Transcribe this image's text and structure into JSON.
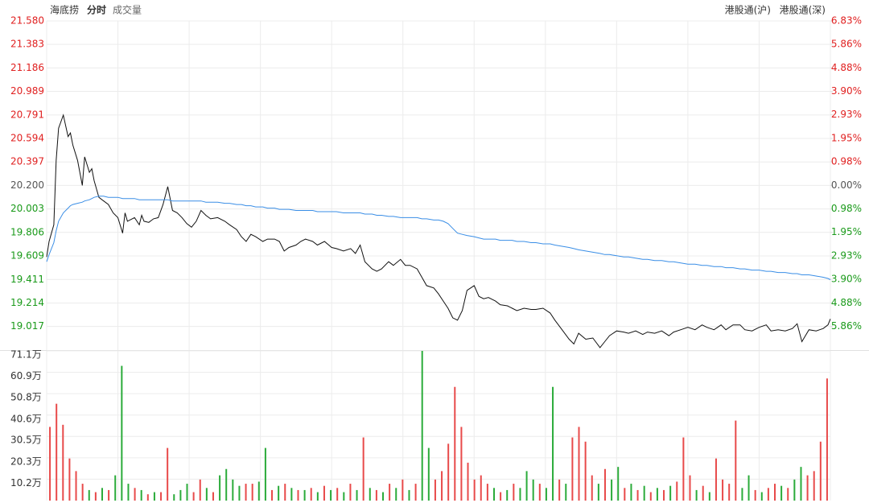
{
  "header": {
    "name": "海底捞",
    "tabs": [
      "分时",
      "成交量"
    ],
    "links": [
      "港股通(沪)",
      "港股通(深)"
    ]
  },
  "chart_data": [
    {
      "type": "line",
      "x": [
        0,
        1,
        3,
        4,
        5,
        7,
        9,
        10,
        11,
        13,
        15,
        16,
        18,
        19,
        20,
        22,
        24,
        26,
        28,
        30,
        32,
        33,
        34,
        37,
        39,
        40,
        41,
        43,
        45,
        47,
        49,
        51,
        53,
        55,
        57,
        59,
        61,
        63,
        65,
        67,
        69,
        72,
        75,
        77,
        80,
        82,
        84,
        86,
        88,
        91,
        93,
        96,
        98,
        100,
        102,
        105,
        107,
        109,
        112,
        114,
        117,
        120,
        122,
        125,
        128,
        130,
        132,
        134,
        137,
        139,
        141,
        144,
        146,
        149,
        151,
        153,
        156,
        158,
        160,
        163,
        165,
        167,
        169,
        171,
        173,
        175,
        177,
        180,
        182,
        184,
        186,
        189,
        191,
        194,
        196,
        198,
        201,
        204,
        206,
        209,
        212,
        214,
        217,
        220,
        222,
        224,
        227,
        230,
        233,
        235,
        237,
        240,
        243,
        245,
        248,
        251,
        253,
        256,
        259,
        262,
        264,
        267,
        270,
        273,
        276,
        278,
        281,
        284,
        286,
        289,
        292,
        294,
        297,
        300,
        303,
        305,
        308,
        311,
        314,
        316,
        318,
        321,
        324,
        327,
        329,
        330
      ],
      "xlim": [
        0,
        330
      ],
      "ylim": [
        18.819,
        21.58
      ],
      "yticks": [
        {
          "value": 21.58,
          "label": "21.580"
        },
        {
          "value": 21.383,
          "label": "21.383"
        },
        {
          "value": 21.186,
          "label": "21.186"
        },
        {
          "value": 20.989,
          "label": "20.989"
        },
        {
          "value": 20.791,
          "label": "20.791"
        },
        {
          "value": 20.594,
          "label": "20.594"
        },
        {
          "value": 20.397,
          "label": "20.397"
        },
        {
          "value": 20.2,
          "label": "20.200"
        },
        {
          "value": 20.003,
          "label": "20.003"
        },
        {
          "value": 19.806,
          "label": "19.806"
        },
        {
          "value": 19.609,
          "label": "19.609"
        },
        {
          "value": 19.411,
          "label": "19.411"
        },
        {
          "value": 19.214,
          "label": "19.214"
        },
        {
          "value": 19.017,
          "label": "19.017"
        }
      ],
      "y2lim": [
        -6.84,
        6.83
      ],
      "y2ticks": [
        {
          "value": 6.83,
          "label": "6.83%"
        },
        {
          "value": 5.86,
          "label": "5.86%"
        },
        {
          "value": 4.88,
          "label": "4.88%"
        },
        {
          "value": 3.9,
          "label": "3.90%"
        },
        {
          "value": 2.93,
          "label": "2.93%"
        },
        {
          "value": 1.95,
          "label": "1.95%"
        },
        {
          "value": 0.98,
          "label": "0.98%"
        },
        {
          "value": 0,
          "label": "0.00%"
        },
        {
          "value": -0.98,
          "label": "0.98%"
        },
        {
          "value": -1.95,
          "label": "1.95%"
        },
        {
          "value": -2.93,
          "label": "2.93%"
        },
        {
          "value": -3.9,
          "label": "3.90%"
        },
        {
          "value": -4.88,
          "label": "4.88%"
        },
        {
          "value": -5.86,
          "label": "5.86%"
        }
      ],
      "up_color": "#e02020",
      "down_color": "#1a9a1a",
      "flat_color": "#555555",
      "grid": true,
      "series": [
        {
          "color": "#111111",
          "values": [
            19.6,
            19.73,
            19.87,
            20.41,
            20.68,
            20.79,
            20.61,
            20.64,
            20.54,
            20.41,
            20.2,
            20.44,
            20.31,
            20.34,
            20.24,
            20.1,
            20.07,
            20.04,
            19.97,
            19.93,
            19.8,
            19.97,
            19.9,
            19.93,
            19.87,
            19.95,
            19.9,
            19.89,
            19.92,
            19.93,
            20.04,
            20.19,
            19.99,
            19.97,
            19.93,
            19.88,
            19.85,
            19.9,
            19.99,
            19.95,
            19.92,
            19.93,
            19.9,
            19.87,
            19.83,
            19.77,
            19.73,
            19.79,
            19.77,
            19.73,
            19.75,
            19.75,
            19.73,
            19.65,
            19.68,
            19.7,
            19.73,
            19.75,
            19.73,
            19.7,
            19.73,
            19.68,
            19.67,
            19.65,
            19.67,
            19.63,
            19.7,
            19.56,
            19.5,
            19.48,
            19.5,
            19.56,
            19.53,
            19.58,
            19.53,
            19.53,
            19.5,
            19.43,
            19.36,
            19.34,
            19.29,
            19.23,
            19.17,
            19.09,
            19.07,
            19.15,
            19.32,
            19.36,
            19.27,
            19.25,
            19.26,
            19.23,
            19.2,
            19.19,
            19.17,
            19.15,
            19.17,
            19.16,
            19.16,
            19.17,
            19.13,
            19.07,
            18.99,
            18.91,
            18.87,
            18.96,
            18.91,
            18.92,
            18.84,
            18.89,
            18.94,
            18.98,
            18.97,
            18.96,
            18.98,
            18.95,
            18.97,
            18.96,
            18.98,
            18.94,
            18.97,
            18.99,
            19.01,
            18.99,
            19.03,
            19.01,
            18.99,
            19.03,
            18.99,
            19.03,
            19.03,
            18.99,
            18.98,
            19.01,
            19.03,
            18.98,
            18.99,
            18.98,
            19.0,
            19.04,
            18.89,
            18.99,
            18.98,
            19.0,
            19.03,
            19.08
          ]
        },
        {
          "color": "#3a8ee6",
          "values": [
            19.56,
            19.62,
            19.72,
            19.82,
            19.9,
            19.97,
            20.01,
            20.03,
            20.04,
            20.05,
            20.06,
            20.07,
            20.08,
            20.09,
            20.1,
            20.11,
            20.11,
            20.1,
            20.1,
            20.1,
            20.09,
            20.09,
            20.09,
            20.09,
            20.08,
            20.08,
            20.08,
            20.08,
            20.08,
            20.08,
            20.08,
            20.08,
            20.07,
            20.07,
            20.07,
            20.07,
            20.07,
            20.07,
            20.07,
            20.06,
            20.06,
            20.06,
            20.05,
            20.05,
            20.04,
            20.04,
            20.03,
            20.03,
            20.02,
            20.02,
            20.01,
            20.01,
            20.0,
            20.0,
            20.0,
            19.99,
            19.99,
            19.99,
            19.99,
            19.98,
            19.98,
            19.98,
            19.98,
            19.97,
            19.97,
            19.97,
            19.97,
            19.96,
            19.96,
            19.95,
            19.95,
            19.94,
            19.94,
            19.93,
            19.93,
            19.93,
            19.93,
            19.92,
            19.92,
            19.91,
            19.91,
            19.9,
            19.88,
            19.84,
            19.8,
            19.79,
            19.78,
            19.77,
            19.76,
            19.75,
            19.75,
            19.75,
            19.74,
            19.74,
            19.74,
            19.73,
            19.73,
            19.72,
            19.72,
            19.71,
            19.71,
            19.7,
            19.69,
            19.68,
            19.67,
            19.66,
            19.65,
            19.64,
            19.63,
            19.62,
            19.62,
            19.61,
            19.6,
            19.6,
            19.59,
            19.58,
            19.58,
            19.57,
            19.57,
            19.56,
            19.56,
            19.55,
            19.54,
            19.54,
            19.53,
            19.53,
            19.52,
            19.52,
            19.51,
            19.51,
            19.5,
            19.5,
            19.49,
            19.49,
            19.48,
            19.48,
            19.47,
            19.47,
            19.46,
            19.46,
            19.45,
            19.45,
            19.44,
            19.43,
            19.42,
            19.41
          ]
        }
      ]
    },
    {
      "type": "bar",
      "ylim": [
        0,
        71.1
      ],
      "yticks": [
        {
          "value": 71.1,
          "label": "71.1万"
        },
        {
          "value": 60.9,
          "label": "60.9万"
        },
        {
          "value": 50.8,
          "label": "50.8万"
        },
        {
          "value": 40.6,
          "label": "40.6万"
        },
        {
          "value": 30.5,
          "label": "30.5万"
        },
        {
          "value": 20.3,
          "label": "20.3万"
        },
        {
          "value": 10.2,
          "label": "10.2万"
        }
      ],
      "values": [
        35,
        46,
        36,
        20,
        14,
        8,
        5,
        4,
        6,
        5,
        12,
        64,
        8,
        6,
        5,
        3,
        4,
        4,
        25,
        3,
        5,
        8,
        4,
        10,
        6,
        4,
        12,
        15,
        10,
        7,
        8,
        8,
        9,
        25,
        5,
        7,
        8,
        6,
        5,
        5,
        6,
        4,
        7,
        5,
        6,
        4,
        8,
        5,
        30,
        6,
        5,
        4,
        8,
        6,
        10,
        5,
        8,
        71.1,
        25,
        10,
        14,
        27,
        54,
        35,
        18,
        10,
        12,
        8,
        6,
        4,
        5,
        8,
        6,
        14,
        10,
        8,
        6,
        54,
        10,
        8,
        30,
        35,
        28,
        12,
        8,
        15,
        10,
        16,
        6,
        8,
        5,
        7,
        4,
        6,
        5,
        7,
        9,
        30,
        12,
        5,
        7,
        4,
        20,
        10,
        8,
        38,
        6,
        12,
        5,
        4,
        6,
        8,
        7,
        6,
        10,
        16,
        12,
        14,
        28,
        58
      ],
      "colors": [
        "#e84a4a",
        "#e84a4a",
        "#e84a4a",
        "#e84a4a",
        "#e84a4a",
        "#e84a4a",
        "#2bab3a",
        "#e84a4a",
        "#2bab3a",
        "#e84a4a",
        "#2bab3a",
        "#2bab3a",
        "#2bab3a",
        "#e84a4a",
        "#2bab3a",
        "#e84a4a",
        "#2bab3a",
        "#e84a4a",
        "#e84a4a",
        "#2bab3a",
        "#2bab3a",
        "#2bab3a",
        "#e84a4a",
        "#e84a4a",
        "#2bab3a",
        "#e84a4a",
        "#2bab3a",
        "#2bab3a",
        "#2bab3a",
        "#2bab3a",
        "#e84a4a",
        "#e84a4a",
        "#2bab3a",
        "#2bab3a",
        "#e84a4a",
        "#2bab3a",
        "#e84a4a",
        "#2bab3a",
        "#e84a4a",
        "#2bab3a",
        "#e84a4a",
        "#2bab3a",
        "#e84a4a",
        "#2bab3a",
        "#e84a4a",
        "#2bab3a",
        "#e84a4a",
        "#2bab3a",
        "#e84a4a",
        "#2bab3a",
        "#e84a4a",
        "#2bab3a",
        "#e84a4a",
        "#2bab3a",
        "#e84a4a",
        "#2bab3a",
        "#e84a4a",
        "#2bab3a",
        "#2bab3a",
        "#e84a4a",
        "#e84a4a",
        "#e84a4a",
        "#e84a4a",
        "#e84a4a",
        "#e84a4a",
        "#e84a4a",
        "#e84a4a",
        "#e84a4a",
        "#2bab3a",
        "#e84a4a",
        "#2bab3a",
        "#e84a4a",
        "#2bab3a",
        "#2bab3a",
        "#2bab3a",
        "#e84a4a",
        "#2bab3a",
        "#2bab3a",
        "#e84a4a",
        "#2bab3a",
        "#e84a4a",
        "#e84a4a",
        "#e84a4a",
        "#e84a4a",
        "#2bab3a",
        "#e84a4a",
        "#2bab3a",
        "#2bab3a",
        "#e84a4a",
        "#2bab3a",
        "#e84a4a",
        "#2bab3a",
        "#e84a4a",
        "#2bab3a",
        "#e84a4a",
        "#2bab3a",
        "#e84a4a",
        "#e84a4a",
        "#e84a4a",
        "#2bab3a",
        "#e84a4a",
        "#2bab3a",
        "#e84a4a",
        "#e84a4a",
        "#e84a4a",
        "#e84a4a",
        "#2bab3a",
        "#2bab3a",
        "#e84a4a",
        "#2bab3a",
        "#e84a4a",
        "#e84a4a",
        "#2bab3a",
        "#e84a4a",
        "#2bab3a",
        "#2bab3a",
        "#e84a4a",
        "#e84a4a",
        "#e84a4a",
        "#e84a4a"
      ]
    }
  ]
}
